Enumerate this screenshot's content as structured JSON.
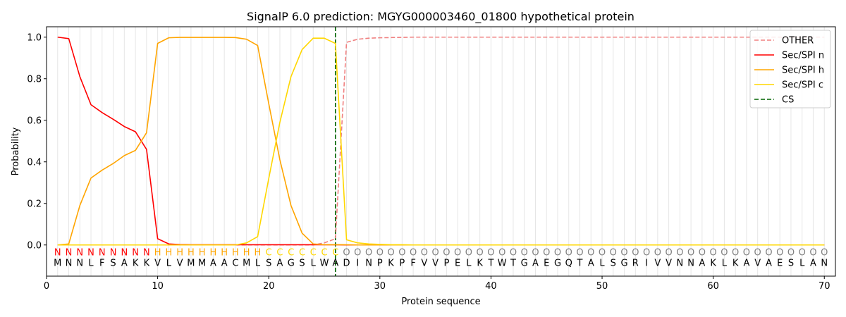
{
  "chart_data": {
    "type": "line",
    "title": "SignalP 6.0 prediction: MGYG000003460_01800 hypothetical protein",
    "xlabel": "Protein sequence",
    "ylabel": "Probability",
    "xlim": [
      0,
      71
    ],
    "ylim": [
      -0.15,
      1.05
    ],
    "xticks": [
      0,
      10,
      20,
      30,
      40,
      50,
      60,
      70
    ],
    "yticks": [
      "0.0",
      "0.2",
      "0.4",
      "0.6",
      "0.8",
      "1.0"
    ],
    "grid": "vertical lines at each residue",
    "legend_position": "top-right",
    "sequence": "MNNLFSAKKVLVMMAACMLSAGSLWADINPKPFVVPELKTWTGAEGQTALSGRIVVNNAKLKAVAESLAN",
    "region_labels": "NNNNNNNNNHHHHHHHHHHCCCCCCCOOOOOOOOOOOOOOOOOOOOOOOOOOOOOOOOOOOOOOOOOOOO",
    "region_colors": {
      "N": "#ff0000",
      "H": "#ffa500",
      "C": "#ffd700",
      "O": "#808080"
    },
    "cleavage_site": 26,
    "series": [
      {
        "name": "OTHER",
        "color": "#f08080",
        "dash": true,
        "values": [
          0,
          0,
          0,
          0,
          0,
          0,
          0,
          0,
          0,
          0,
          0,
          0,
          0,
          0,
          0,
          0,
          0,
          0,
          0,
          0,
          0,
          0,
          0,
          0,
          0.01,
          0.03,
          0.975,
          0.99,
          0.995,
          0.997,
          0.998,
          0.999,
          1,
          1,
          1,
          1,
          1,
          1,
          1,
          1,
          1,
          1,
          1,
          1,
          1,
          1,
          1,
          1,
          1,
          1,
          1,
          1,
          1,
          1,
          1,
          1,
          1,
          1,
          1,
          1,
          1,
          1,
          1,
          1,
          1,
          1,
          1,
          1,
          1,
          1
        ]
      },
      {
        "name": "Sec/SPI n",
        "color": "#ff0000",
        "dash": false,
        "values": [
          1.0,
          0.993,
          0.81,
          0.675,
          0.637,
          0.605,
          0.57,
          0.545,
          0.46,
          0.03,
          0.005,
          0.002,
          0.001,
          0.001,
          0.001,
          0.001,
          0.001,
          0.001,
          0.001,
          0.001,
          0.001,
          0.001,
          0.001,
          0.001,
          0.001,
          0.001,
          0,
          0,
          0,
          0,
          0,
          0,
          0,
          0,
          0,
          0,
          0,
          0,
          0,
          0,
          0,
          0,
          0,
          0,
          0,
          0,
          0,
          0,
          0,
          0,
          0,
          0,
          0,
          0,
          0,
          0,
          0,
          0,
          0,
          0,
          0,
          0,
          0,
          0,
          0,
          0,
          0,
          0,
          0,
          0
        ]
      },
      {
        "name": "Sec/SPI h",
        "color": "#ffa500",
        "dash": false,
        "values": [
          0.0,
          0.005,
          0.19,
          0.322,
          0.36,
          0.392,
          0.43,
          0.455,
          0.54,
          0.97,
          0.997,
          0.999,
          0.999,
          0.999,
          0.999,
          0.999,
          0.998,
          0.99,
          0.96,
          0.68,
          0.41,
          0.19,
          0.057,
          0.005,
          0.001,
          0.001,
          0.001,
          0,
          0,
          0,
          0,
          0,
          0,
          0,
          0,
          0,
          0,
          0,
          0,
          0,
          0,
          0,
          0,
          0,
          0,
          0,
          0,
          0,
          0,
          0,
          0,
          0,
          0,
          0,
          0,
          0,
          0,
          0,
          0,
          0,
          0,
          0,
          0,
          0,
          0,
          0,
          0,
          0,
          0,
          0
        ]
      },
      {
        "name": "Sec/SPI c",
        "color": "#ffd700",
        "dash": false,
        "values": [
          0,
          0,
          0,
          0,
          0,
          0,
          0,
          0,
          0,
          0,
          0,
          0,
          0,
          0,
          0,
          0,
          0,
          0.01,
          0.04,
          0.32,
          0.59,
          0.81,
          0.94,
          0.995,
          0.995,
          0.97,
          0.025,
          0.01,
          0.005,
          0.003,
          0.001,
          0.001,
          0,
          0,
          0,
          0,
          0,
          0,
          0,
          0,
          0,
          0,
          0,
          0,
          0,
          0,
          0,
          0,
          0,
          0,
          0,
          0,
          0,
          0,
          0,
          0,
          0,
          0,
          0,
          0,
          0,
          0,
          0,
          0,
          0,
          0,
          0,
          0,
          0,
          0
        ]
      },
      {
        "name": "CS",
        "color": "#006400",
        "dash": true,
        "vertical_at": 26
      }
    ]
  }
}
